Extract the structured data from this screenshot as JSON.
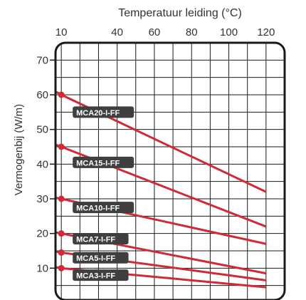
{
  "chart_data": {
    "type": "line",
    "title": "Temperatuur leiding (°C)",
    "xlabel": "",
    "ylabel": "Vermogenbij (W/m)",
    "x_axis_position": "top",
    "xlim": [
      0,
      130
    ],
    "ylim": [
      0,
      75
    ],
    "xticks": [
      10,
      40,
      60,
      80,
      100,
      120
    ],
    "xtick_labels": [
      "10",
      "40",
      "60",
      "80",
      "100",
      "120"
    ],
    "yticks": [
      10,
      20,
      30,
      40,
      50,
      60,
      70
    ],
    "ytick_labels": [
      "10",
      "20",
      "30",
      "40",
      "50",
      "60",
      "70"
    ],
    "grid": true,
    "line_color": "#cf2a36",
    "label_bg_color": "#3f3f3f",
    "series": [
      {
        "name": "MCA20-I-FF",
        "x": [
          0,
          10,
          120
        ],
        "y": [
          63,
          60,
          32
        ],
        "label_at": [
          10,
          55
        ]
      },
      {
        "name": "MCA15-I-FF",
        "x": [
          0,
          10,
          120
        ],
        "y": [
          47,
          45,
          22
        ],
        "label_at": [
          10,
          40.5
        ]
      },
      {
        "name": "MCA10-I-FF",
        "x": [
          0,
          10,
          120
        ],
        "y": [
          31,
          30,
          17
        ],
        "label_at": [
          10,
          27.5
        ]
      },
      {
        "name": "MCA7-I-FF",
        "x": [
          0,
          10,
          120
        ],
        "y": [
          21,
          20,
          8.5
        ],
        "label_at": [
          10,
          18.5
        ]
      },
      {
        "name": "MCA5-I-FF",
        "x": [
          0,
          10,
          120
        ],
        "y": [
          15.5,
          14.5,
          6.5
        ],
        "label_at": [
          10,
          13
        ]
      },
      {
        "name": "MCA3-I-FF",
        "x": [
          0,
          10,
          120
        ],
        "y": [
          11,
          10,
          4.5
        ],
        "label_at": [
          10,
          8
        ]
      }
    ]
  }
}
